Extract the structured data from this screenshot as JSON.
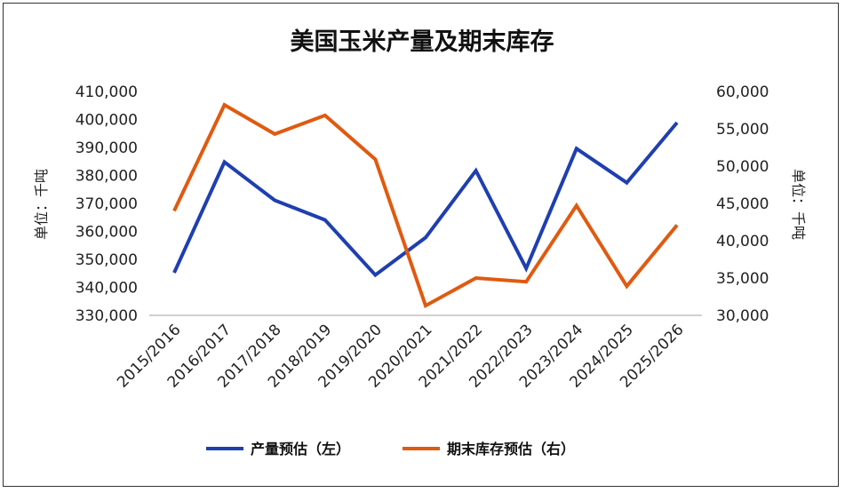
{
  "chart_data": {
    "type": "line",
    "title": "美国玉米产量及期末库存",
    "categories": [
      "2015/2016",
      "2016/2017",
      "2017/2018",
      "2018/2019",
      "2019/2020",
      "2020/2021",
      "2021/2022",
      "2022/2023",
      "2023/2024",
      "2024/2025",
      "2025/2026"
    ],
    "y_left": {
      "label": "单位：千吨",
      "range": [
        330000,
        410000
      ],
      "ticks": [
        "330,000",
        "340,000",
        "350,000",
        "360,000",
        "370,000",
        "380,000",
        "390,000",
        "400,000",
        "410,000"
      ]
    },
    "y_right": {
      "label": "单位：千吨",
      "range": [
        30000,
        60000
      ],
      "ticks": [
        "30,000",
        "35,000",
        "40,000",
        "45,000",
        "50,000",
        "55,000",
        "60,000"
      ]
    },
    "series": [
      {
        "name": "产量预估（左）",
        "axis": "left",
        "color": "#1f3fb0",
        "values": [
          345200,
          384800,
          371100,
          364100,
          344400,
          357800,
          381700,
          346800,
          389600,
          377400,
          398900
        ]
      },
      {
        "name": "期末库存预估（右）",
        "axis": "right",
        "color": "#e05a10",
        "values": [
          44000,
          58200,
          54300,
          56800,
          50900,
          31300,
          35000,
          34500,
          44700,
          33900,
          42100
        ]
      }
    ],
    "grid": false,
    "legend_position": "bottom"
  }
}
